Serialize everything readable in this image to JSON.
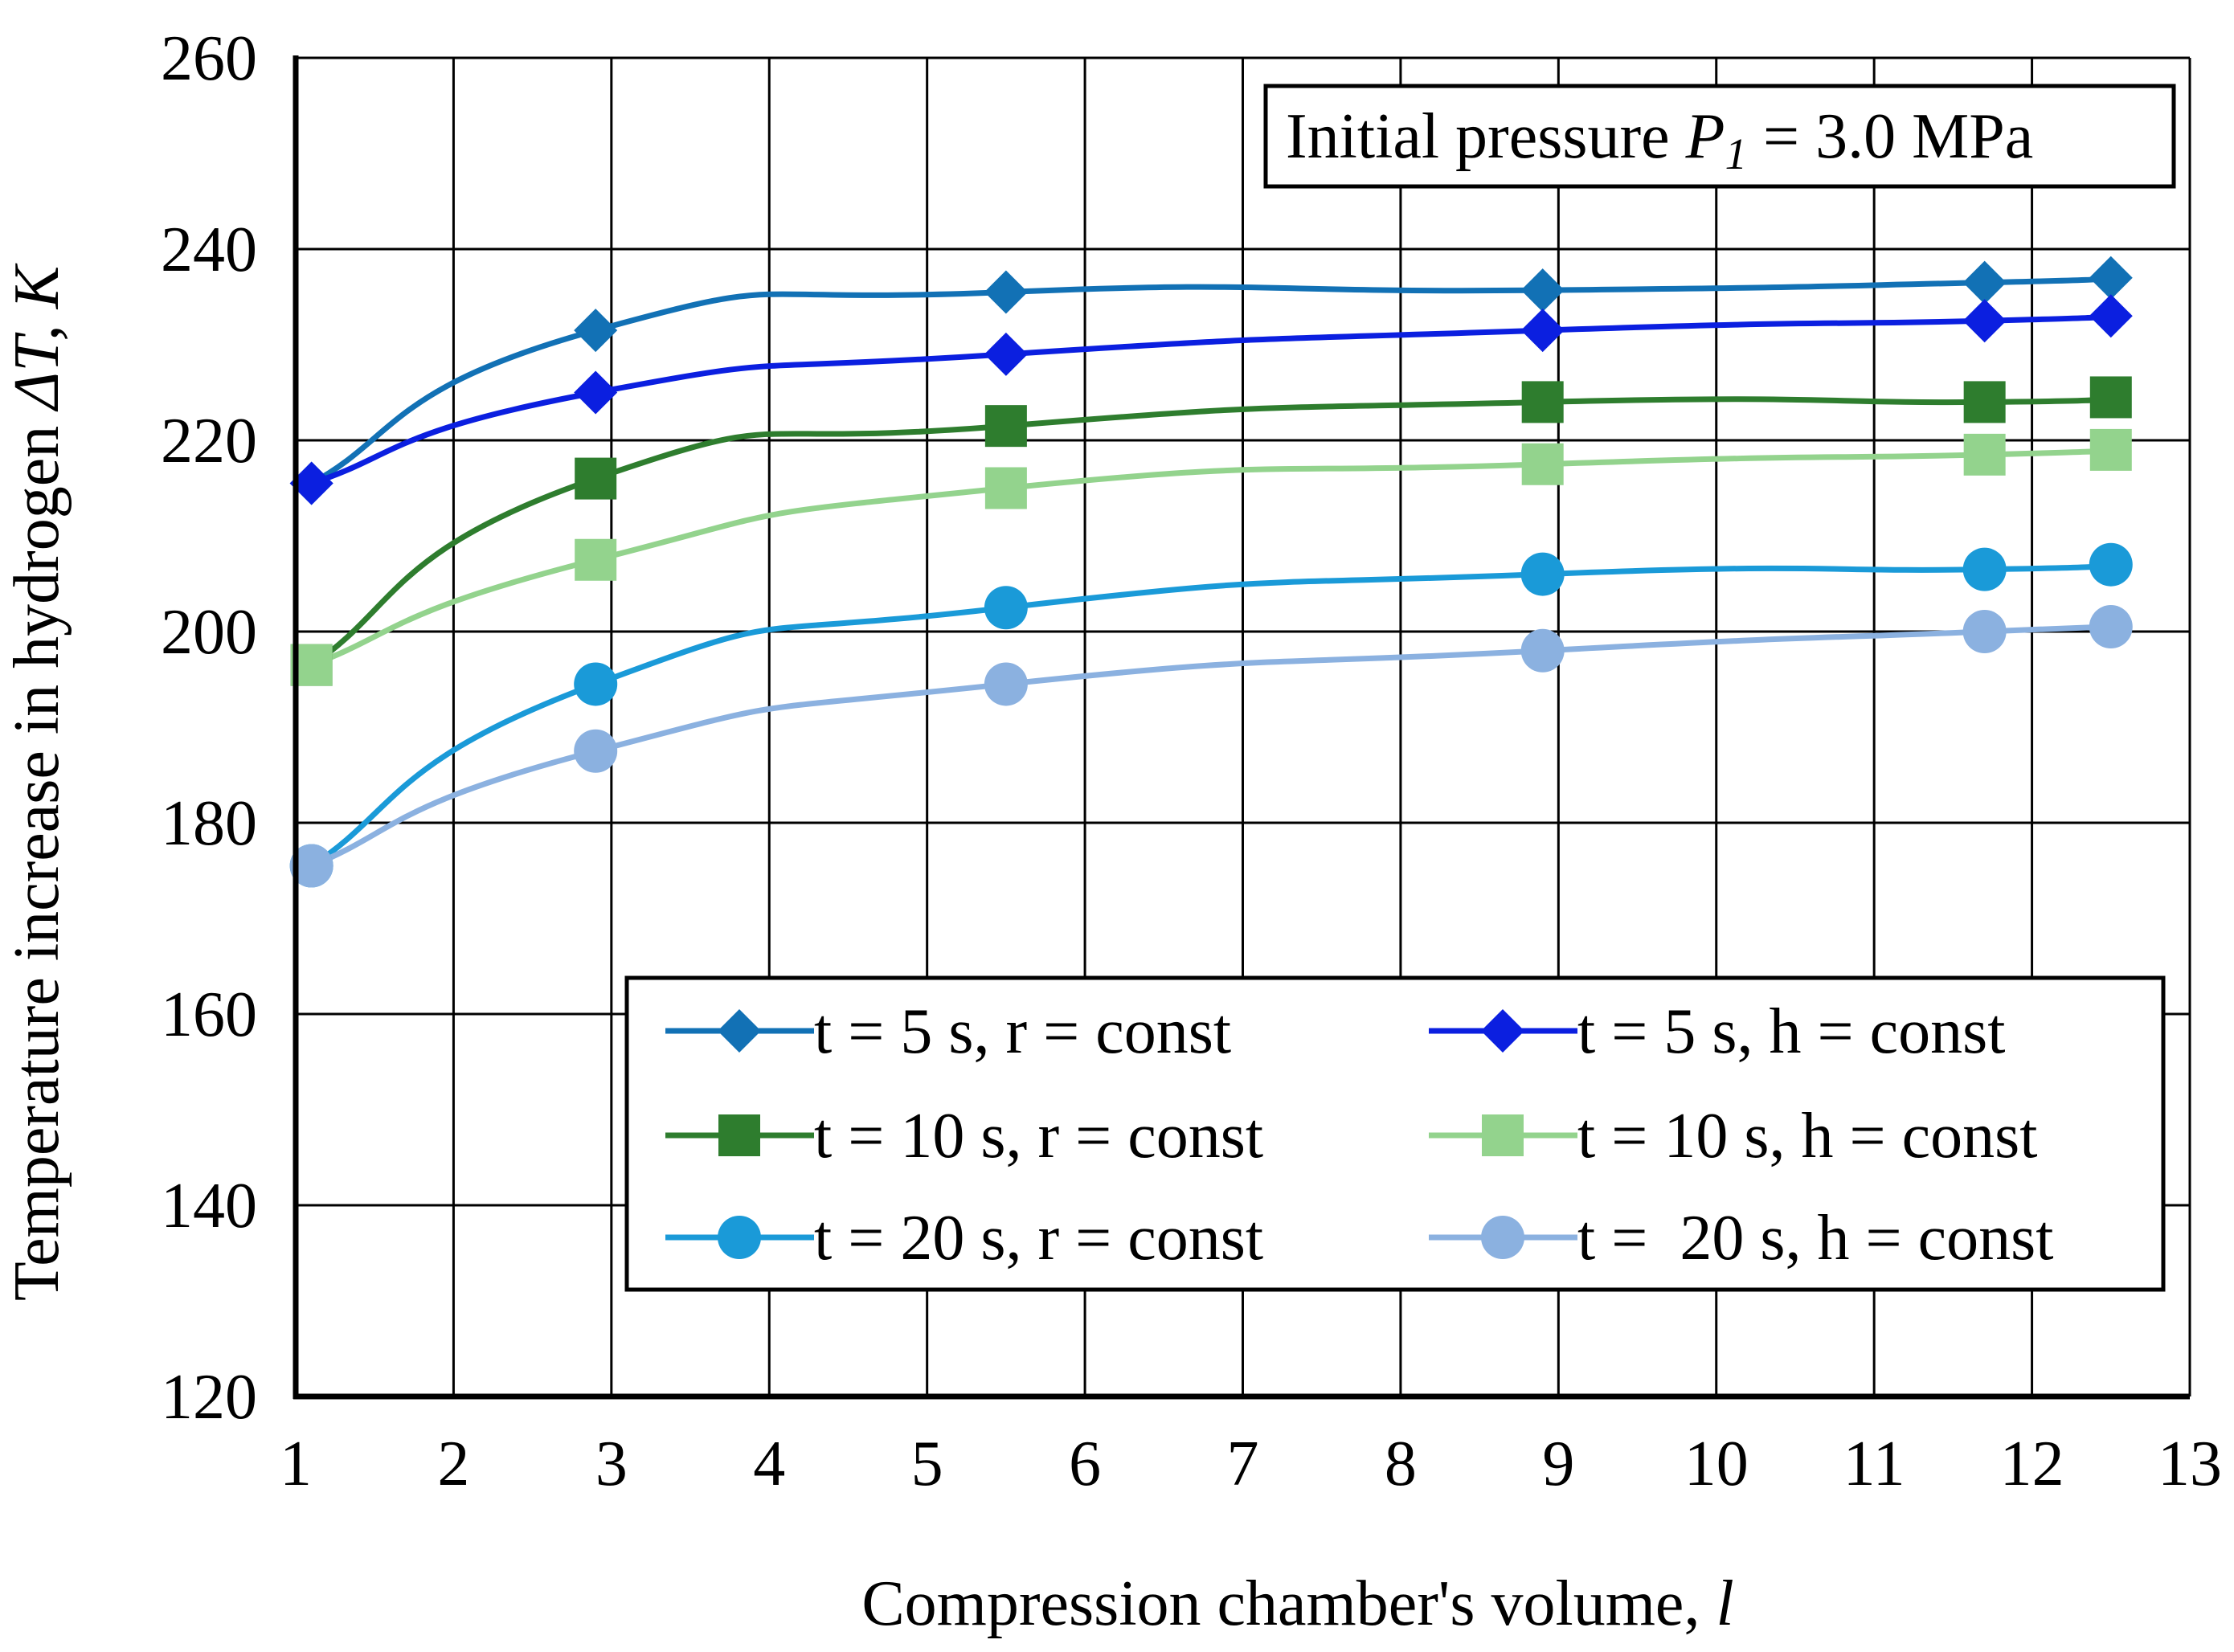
{
  "chart_data": {
    "type": "line",
    "title": "",
    "xlabel": "Compression chamber's volume,",
    "xlabel_var": "l",
    "ylabel": "Temperature increase in hydrogen",
    "ylabel_var": "ΔT, K",
    "xlim": [
      1,
      13
    ],
    "ylim": [
      120,
      260
    ],
    "xticks": [
      "1",
      "2",
      "3",
      "4",
      "5",
      "6",
      "7",
      "8",
      "9",
      "10",
      "11",
      "12",
      "13"
    ],
    "yticks": [
      "120",
      "140",
      "160",
      "180",
      "200",
      "220",
      "240",
      "260"
    ],
    "grid": true,
    "annotation": {
      "prefix": "Initial pressure ",
      "var": "P",
      "sub": "1",
      "suffix": " = 3.0 MPa"
    },
    "legend_position": "bottom-right",
    "series": [
      {
        "name": "t = 5 s, r = const",
        "marker": "diamond",
        "color": "#1271b5",
        "x": [
          1.1,
          2.9,
          5.5,
          8.9,
          11.7,
          12.5
        ],
        "y": [
          215.5,
          231.5,
          235.5,
          235.7,
          236.5,
          237
        ]
      },
      {
        "name": "t = 5 s, h = const",
        "marker": "diamond",
        "color": "#0b1fe0",
        "x": [
          1.1,
          2.9,
          5.5,
          8.9,
          11.7,
          12.5
        ],
        "y": [
          215.5,
          225,
          229,
          231.5,
          232.5,
          233
        ]
      },
      {
        "name": "t = 10 s, r = const",
        "marker": "square",
        "color": "#2e7d2e",
        "x": [
          1.1,
          2.9,
          5.5,
          8.9,
          11.7,
          12.5
        ],
        "y": [
          196.5,
          216,
          221.5,
          224,
          224,
          224.5
        ]
      },
      {
        "name": "t = 10 s, h = const",
        "marker": "square",
        "color": "#93d38d",
        "x": [
          1.1,
          2.9,
          5.5,
          8.9,
          11.7,
          12.5
        ],
        "y": [
          196.5,
          207.5,
          215,
          217.5,
          218.5,
          219
        ]
      },
      {
        "name": "t = 20 s, r = const",
        "marker": "circle",
        "color": "#1a9ad8",
        "x": [
          1.1,
          2.9,
          5.5,
          8.9,
          11.7,
          12.5
        ],
        "y": [
          175.5,
          194.5,
          202.5,
          206,
          206.5,
          207
        ]
      },
      {
        "name": "t =  20 s, h = const",
        "marker": "circle",
        "color": "#8bb1e0",
        "x": [
          1.1,
          2.9,
          5.5,
          8.9,
          11.7,
          12.5
        ],
        "y": [
          175.5,
          187.5,
          194.5,
          198,
          200,
          200.5
        ]
      }
    ]
  }
}
